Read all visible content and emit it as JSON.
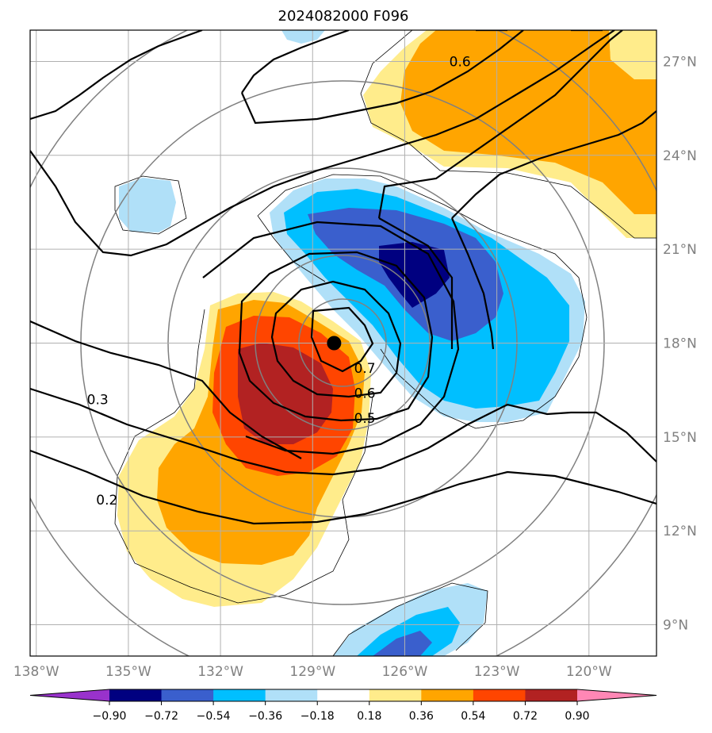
{
  "chart_data": {
    "type": "contour_map",
    "title": "2024082000 F096",
    "lon_range": [
      -138.2,
      -117.8
    ],
    "lat_range": [
      8.0,
      28.0
    ],
    "lon_ticks": [
      "138°W",
      "135°W",
      "132°W",
      "129°W",
      "126°W",
      "123°W",
      "120°W"
    ],
    "lon_tick_values": [
      -138,
      -135,
      -132,
      -129,
      -126,
      -123,
      -120
    ],
    "lat_ticks": [
      "9°N",
      "12°N",
      "15°N",
      "18°N",
      "21°N",
      "24°N",
      "27°N"
    ],
    "lat_tick_values": [
      9,
      12,
      15,
      18,
      21,
      24,
      27
    ],
    "grid": true,
    "storm_center": {
      "lon": -128.3,
      "lat": 18.0
    },
    "contour_labels": [
      {
        "text": "0.7",
        "lon": -127.3,
        "lat": 17.2
      },
      {
        "text": "0.6",
        "lon": -127.3,
        "lat": 16.4
      },
      {
        "text": "0.5",
        "lon": -127.3,
        "lat": 15.6
      },
      {
        "text": "0.6",
        "lon": -124.2,
        "lat": 27.0
      },
      {
        "text": "0.3",
        "lon": -136.0,
        "lat": 16.2
      },
      {
        "text": "0.2",
        "lon": -135.7,
        "lat": 13.0
      }
    ],
    "fill_levels": [
      "-0.90",
      "-0.72",
      "-0.54",
      "-0.36",
      "-0.18",
      "0.18",
      "0.36",
      "0.54",
      "0.72",
      "0.90"
    ],
    "fill_colors": [
      "#9932cc",
      "#000080",
      "#3a5fcd",
      "#00bfff",
      "#b0e0f8",
      "#ffffff",
      "#ffec8b",
      "#ffa500",
      "#ff4500",
      "#b22222",
      "#ff87b5"
    ]
  },
  "colorbar": {
    "labels": [
      "−0.90",
      "−0.72",
      "−0.54",
      "−0.36",
      "−0.18",
      "0.18",
      "0.36",
      "0.54",
      "0.72",
      "0.90"
    ]
  }
}
